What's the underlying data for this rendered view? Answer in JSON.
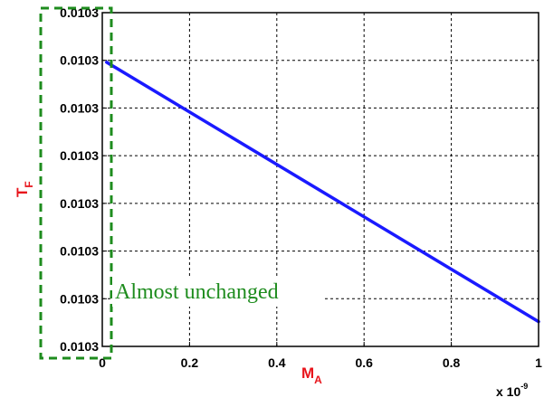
{
  "colors": {
    "axis_label": "#e8141b",
    "series": "#1a1aff",
    "annotation": "#1e8c1e",
    "grid": "#000000"
  },
  "chart_data": {
    "type": "line",
    "title": "",
    "xlabel_main": "M",
    "xlabel_sub": "A",
    "ylabel_main": "T",
    "ylabel_sub": "F",
    "xlim": [
      0,
      1
    ],
    "xticks": [
      "0",
      "0.2",
      "0.4",
      "0.6",
      "0.8",
      "1"
    ],
    "x_multiplier_base": "x 10",
    "x_multiplier_exp": "-9",
    "yticks": [
      "0.0103",
      "0.0103",
      "0.0103",
      "0.0103",
      "0.0103",
      "0.0103",
      "0.0103",
      "0.0103"
    ],
    "ylim_relative": [
      0,
      7
    ],
    "grid": true,
    "series": [
      {
        "color": "#1a1aff",
        "x": [
          0.01,
          1.0
        ],
        "y": [
          5.96,
          0.52
        ]
      }
    ],
    "annotation": {
      "text": "Almost unchanged",
      "box_style": "dashed",
      "color": "#1e8c1e"
    }
  }
}
